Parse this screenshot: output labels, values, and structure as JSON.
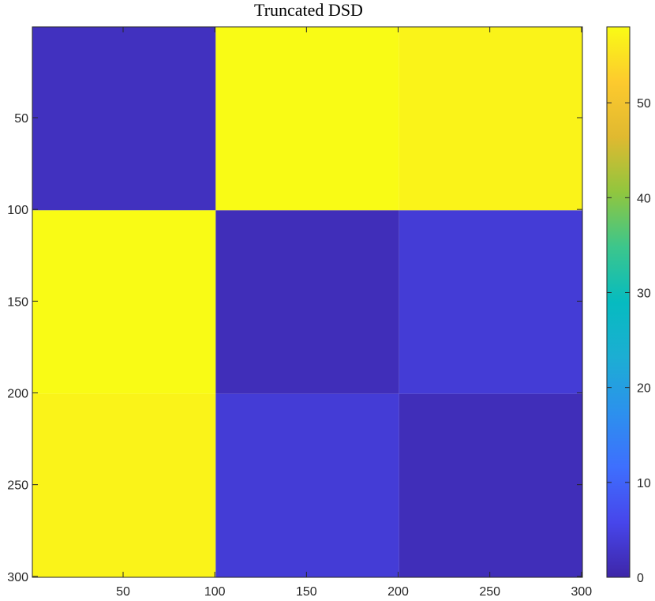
{
  "chart_data": {
    "type": "heatmap",
    "title": "Truncated DSD",
    "xlabel": "",
    "ylabel": "",
    "xlim": [
      0.5,
      300.5
    ],
    "ylim": [
      0.5,
      300.5
    ],
    "y_reversed": true,
    "colormap": "parula",
    "clim": [
      0,
      58
    ],
    "x_ticks": [
      50,
      100,
      150,
      200,
      250,
      300
    ],
    "y_ticks": [
      50,
      100,
      150,
      200,
      250,
      300
    ],
    "colorbar_ticks": [
      0,
      10,
      20,
      30,
      40,
      50
    ],
    "grid": false,
    "colorbar_position": "right",
    "cell_values": [
      {
        "rows": [
          1,
          100
        ],
        "cols": [
          1,
          100
        ],
        "value": 2
      },
      {
        "rows": [
          1,
          100
        ],
        "cols": [
          101,
          200
        ],
        "value": 58
      },
      {
        "rows": [
          1,
          100
        ],
        "cols": [
          201,
          300
        ],
        "value": 57
      },
      {
        "rows": [
          101,
          200
        ],
        "cols": [
          1,
          100
        ],
        "value": 58
      },
      {
        "rows": [
          101,
          200
        ],
        "cols": [
          101,
          200
        ],
        "value": 1.5
      },
      {
        "rows": [
          101,
          200
        ],
        "cols": [
          201,
          300
        ],
        "value": 4
      },
      {
        "rows": [
          201,
          300
        ],
        "cols": [
          1,
          100
        ],
        "value": 57
      },
      {
        "rows": [
          201,
          300
        ],
        "cols": [
          101,
          200
        ],
        "value": 4
      },
      {
        "rows": [
          201,
          300
        ],
        "cols": [
          201,
          300
        ],
        "value": 1.5
      }
    ]
  }
}
